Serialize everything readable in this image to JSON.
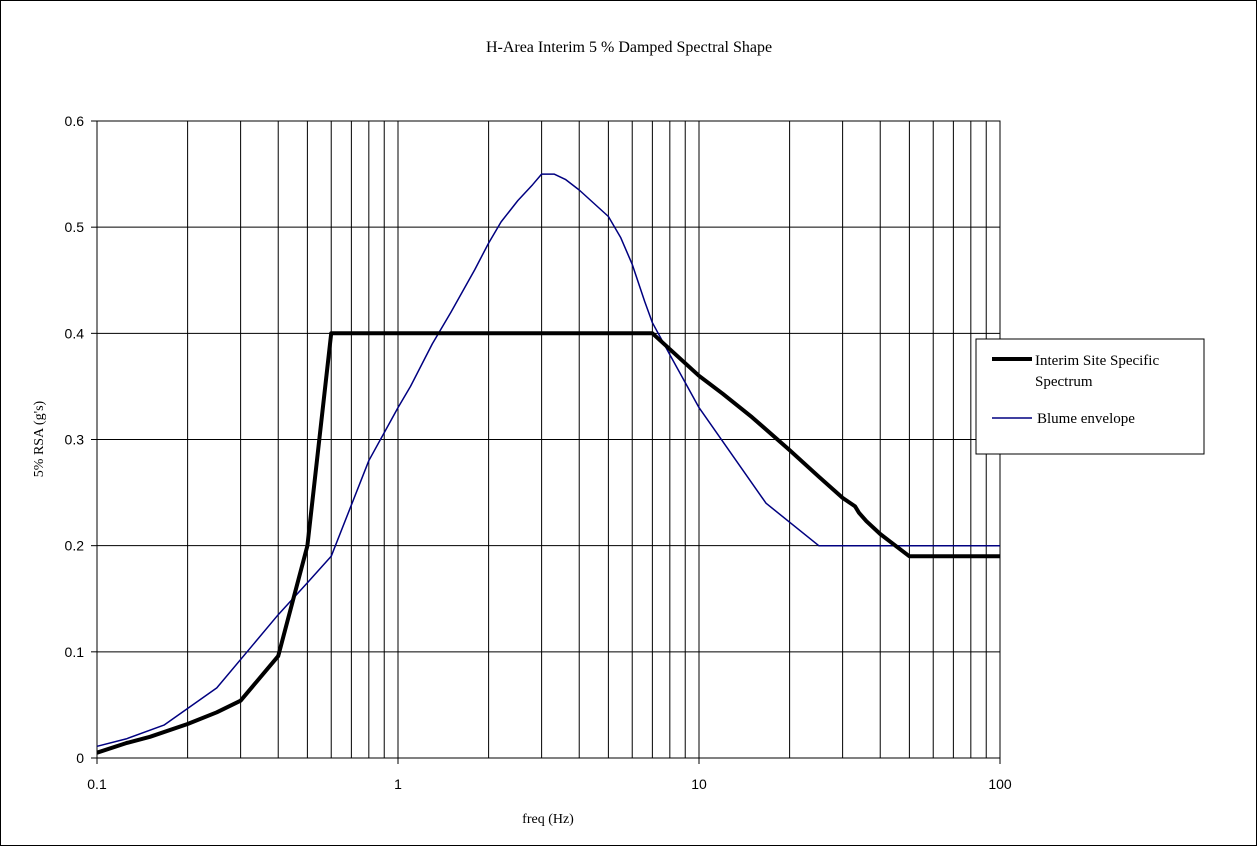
{
  "chart_data": {
    "type": "line",
    "title": "H-Area Interim 5 % Damped Spectral  Shape",
    "xlabel": "freq (Hz)",
    "ylabel": "5% RSA (g's)",
    "x_scale": "log",
    "xlim": [
      0.1,
      100
    ],
    "ylim": [
      0,
      0.6
    ],
    "x_ticks": [
      0.1,
      1,
      10,
      100
    ],
    "x_tick_labels": [
      "0.1",
      "1",
      "10",
      "100"
    ],
    "y_ticks": [
      0,
      0.1,
      0.2,
      0.3,
      0.4,
      0.5,
      0.6
    ],
    "y_tick_labels": [
      "0",
      "0.1",
      "0.2",
      "0.3",
      "0.4",
      "0.5",
      "0.6"
    ],
    "grid": true,
    "legend_position": "right",
    "series": [
      {
        "name": "Interim Site Specific Spectrum",
        "color": "#000000",
        "style": "thick",
        "x": [
          0.1,
          0.125,
          0.15,
          0.2,
          0.25,
          0.3,
          0.4,
          0.5,
          0.6,
          1,
          2,
          5,
          7,
          10,
          12,
          15,
          20,
          25,
          30,
          33,
          34,
          36,
          40,
          50,
          100
        ],
        "y": [
          0.005,
          0.014,
          0.02,
          0.032,
          0.043,
          0.054,
          0.096,
          0.2,
          0.4,
          0.4,
          0.4,
          0.4,
          0.4,
          0.36,
          0.343,
          0.321,
          0.29,
          0.265,
          0.245,
          0.237,
          0.231,
          0.223,
          0.211,
          0.19,
          0.19
        ]
      },
      {
        "name": "Blume envelope",
        "color": "#000080",
        "style": "thin",
        "x": [
          0.1,
          0.125,
          0.167,
          0.25,
          0.4,
          0.5,
          0.6,
          0.8,
          1,
          1.1,
          1.3,
          1.5,
          1.8,
          2,
          2.2,
          2.5,
          2.8,
          3,
          3.3,
          3.6,
          4,
          5,
          5.5,
          6,
          6.6,
          7,
          8,
          10,
          16.7,
          25,
          33.3,
          100
        ],
        "y": [
          0.011,
          0.018,
          0.031,
          0.066,
          0.135,
          0.165,
          0.19,
          0.28,
          0.33,
          0.35,
          0.39,
          0.42,
          0.46,
          0.485,
          0.505,
          0.525,
          0.54,
          0.55,
          0.55,
          0.545,
          0.535,
          0.51,
          0.49,
          0.465,
          0.43,
          0.41,
          0.38,
          0.33,
          0.24,
          0.2,
          0.2,
          0.2
        ]
      }
    ]
  }
}
